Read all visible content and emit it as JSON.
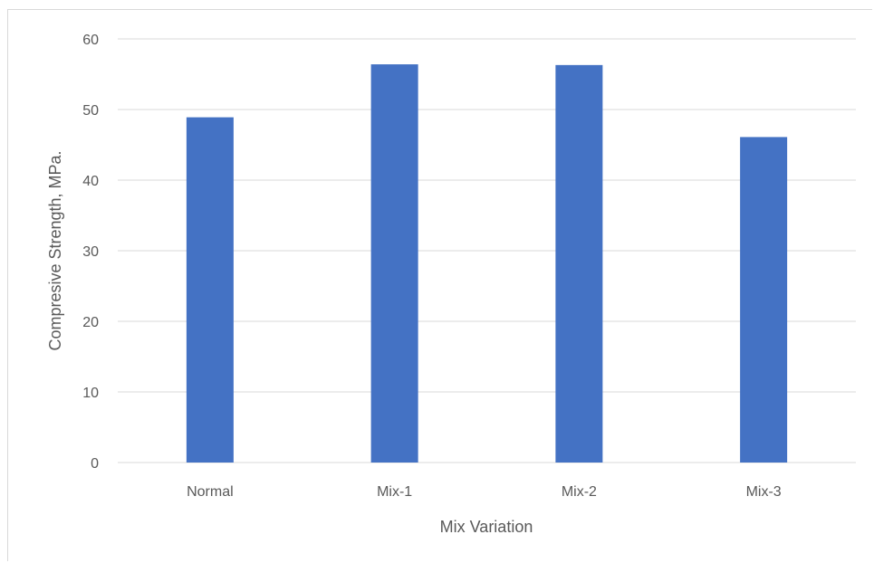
{
  "chart_data": {
    "type": "bar",
    "title": "",
    "xlabel": "Mix Variation",
    "ylabel": "Compresive Strength, MPa.",
    "categories": [
      "Normal",
      "Mix-1",
      "Mix-2",
      "Mix-3"
    ],
    "values": [
      48.9,
      56.4,
      56.3,
      46.1
    ],
    "ylim": [
      0,
      60
    ],
    "yticks": [
      "0",
      "10",
      "20",
      "30",
      "40",
      "50",
      "60"
    ],
    "grid": true,
    "legend": "none",
    "bar_color": "#4472C4",
    "grid_color": "#d9d9d9"
  }
}
